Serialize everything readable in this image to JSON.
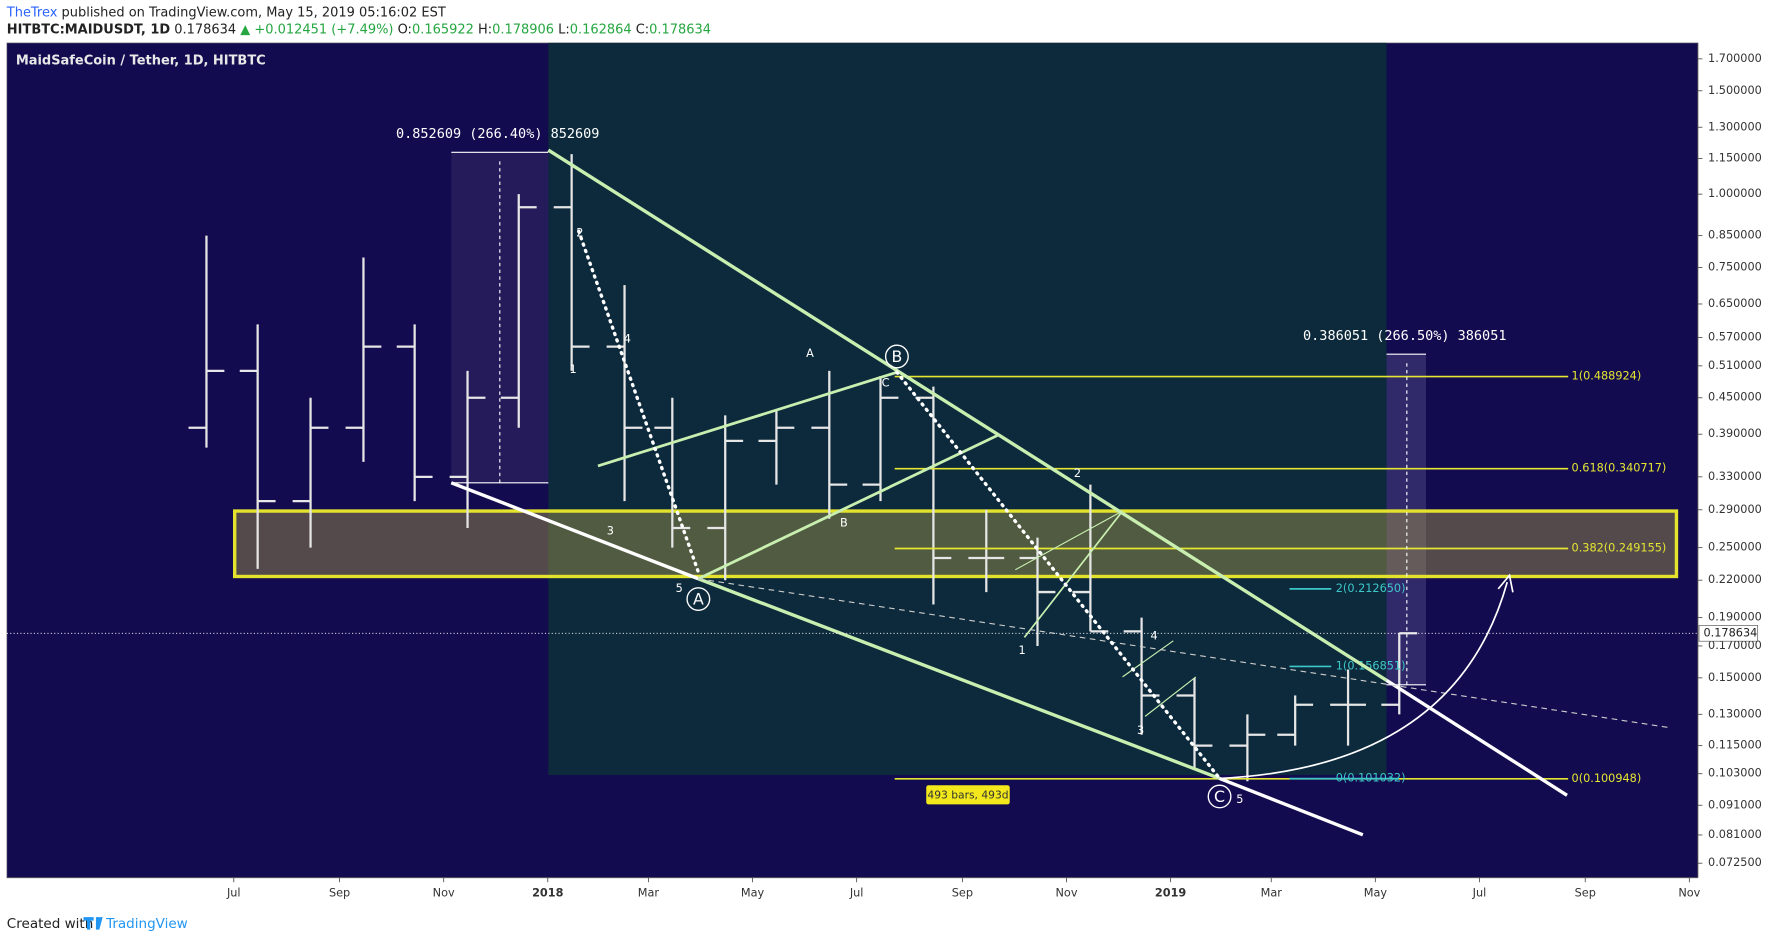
{
  "header": {
    "author": "TheTrex",
    "published": "published on TradingView.com, May 15, 2019 05:16:02 EST",
    "symbol": "HITBTC:MAIDUSDT, 1D",
    "last": "0.178634",
    "change": "▲ +0.012451 (+7.49%)",
    "o_label": "O:",
    "o": "0.165922",
    "h_label": "H:",
    "h": "0.178906",
    "l_label": "L:",
    "l": "0.162864",
    "c_label": "C:",
    "c": "0.178634"
  },
  "chart_data": {
    "type": "ohlc",
    "title": "MaidSafeCoin / Tether, 1D, HITBTC",
    "log_scale": true,
    "color": "#e6e6e6",
    "x": [
      "2017-06",
      "2017-07",
      "2017-08",
      "2017-09",
      "2017-10",
      "2017-11",
      "2017-12",
      "2018-01",
      "2018-02",
      "2018-03",
      "2018-04",
      "2018-05",
      "2018-06",
      "2018-07",
      "2018-08",
      "2018-09",
      "2018-10",
      "2018-11",
      "2018-12",
      "2019-01",
      "2019-02",
      "2019-03",
      "2019-04",
      "2019-05"
    ],
    "open": [
      0.4,
      0.5,
      0.3,
      0.4,
      0.55,
      0.33,
      0.45,
      0.95,
      0.55,
      0.4,
      0.27,
      0.38,
      0.4,
      0.32,
      0.45,
      0.24,
      0.24,
      0.21,
      0.18,
      0.14,
      0.115,
      0.12,
      0.135,
      0.135
    ],
    "high": [
      0.85,
      0.6,
      0.45,
      0.78,
      0.6,
      0.5,
      1.0,
      1.17,
      0.7,
      0.45,
      0.42,
      0.43,
      0.5,
      0.49,
      0.47,
      0.29,
      0.26,
      0.32,
      0.19,
      0.15,
      0.13,
      0.14,
      0.155,
      0.178906
    ],
    "low": [
      0.37,
      0.23,
      0.25,
      0.35,
      0.3,
      0.27,
      0.4,
      0.5,
      0.3,
      0.25,
      0.22,
      0.32,
      0.28,
      0.3,
      0.2,
      0.21,
      0.17,
      0.18,
      0.12,
      0.105,
      0.1,
      0.115,
      0.115,
      0.13
    ],
    "close": [
      0.5,
      0.3,
      0.4,
      0.55,
      0.33,
      0.45,
      0.95,
      0.55,
      0.4,
      0.27,
      0.38,
      0.4,
      0.32,
      0.45,
      0.24,
      0.24,
      0.21,
      0.18,
      0.14,
      0.115,
      0.12,
      0.135,
      0.135,
      0.178634
    ],
    "xlim": [
      "2017-02-18",
      "2019-11-06"
    ],
    "xticks": [
      {
        "value": "2017-07",
        "label": "Jul"
      },
      {
        "value": "2017-09",
        "label": "Sep"
      },
      {
        "value": "2017-11",
        "label": "Nov"
      },
      {
        "value": "2018-01",
        "label": "2018"
      },
      {
        "value": "2018-03",
        "label": "Mar"
      },
      {
        "value": "2018-05",
        "label": "May"
      },
      {
        "value": "2018-07",
        "label": "Jul"
      },
      {
        "value": "2018-09",
        "label": "Sep"
      },
      {
        "value": "2018-11",
        "label": "Nov"
      },
      {
        "value": "2019-01",
        "label": "2019"
      },
      {
        "value": "2019-03",
        "label": "Mar"
      },
      {
        "value": "2019-05",
        "label": "May"
      },
      {
        "value": "2019-07",
        "label": "Jul"
      },
      {
        "value": "2019-09",
        "label": "Sep"
      },
      {
        "value": "2019-11",
        "label": "Nov"
      }
    ],
    "ylim": [
      0.0685,
      1.81
    ],
    "yticks": [
      {
        "value": 1.7,
        "label": "1.700000"
      },
      {
        "value": 1.5,
        "label": "1.500000"
      },
      {
        "value": 1.3,
        "label": "1.300000"
      },
      {
        "value": 1.15,
        "label": "1.150000"
      },
      {
        "value": 1.0,
        "label": "1.000000"
      },
      {
        "value": 0.85,
        "label": "0.850000"
      },
      {
        "value": 0.75,
        "label": "0.750000"
      },
      {
        "value": 0.65,
        "label": "0.650000"
      },
      {
        "value": 0.57,
        "label": "0.570000"
      },
      {
        "value": 0.51,
        "label": "0.510000"
      },
      {
        "value": 0.45,
        "label": "0.450000"
      },
      {
        "value": 0.39,
        "label": "0.390000"
      },
      {
        "value": 0.33,
        "label": "0.330000"
      },
      {
        "value": 0.29,
        "label": "0.290000"
      },
      {
        "value": 0.25,
        "label": "0.250000"
      },
      {
        "value": 0.22,
        "label": "0.220000"
      },
      {
        "value": 0.19,
        "label": "0.190000"
      },
      {
        "value": 0.17,
        "label": "0.170000"
      },
      {
        "value": 0.15,
        "label": "0.150000"
      },
      {
        "value": 0.13,
        "label": "0.130000"
      },
      {
        "value": 0.115,
        "label": "0.115000"
      },
      {
        "value": 0.103,
        "label": "0.103000"
      },
      {
        "value": 0.091,
        "label": "0.091000"
      },
      {
        "value": 0.081,
        "label": "0.081000"
      },
      {
        "value": 0.0725,
        "label": "0.072500"
      }
    ],
    "last_price": {
      "value": 0.178634,
      "label": "0.178634"
    },
    "fib_levels": [
      {
        "value": 0.488924,
        "label": "1(0.488924)"
      },
      {
        "value": 0.340717,
        "label": "0.618(0.340717)"
      },
      {
        "value": 0.249155,
        "label": "0.382(0.249155)"
      },
      {
        "value": 0.100948,
        "label": "0(0.100948)"
      }
    ],
    "extension_levels": [
      {
        "value": 0.21265,
        "label": "2(0.212650)"
      },
      {
        "value": 0.156851,
        "label": "1(0.156851)"
      },
      {
        "value": 0.101032,
        "label": "0(0.101032)"
      }
    ],
    "measure_1": "0.852609 (266.40%) 852609",
    "measure_2": "0.386051 (266.50%) 386051",
    "date_range": "493 bars, 493d",
    "wave_labels": [
      "A",
      "B",
      "C",
      "1",
      "2",
      "3",
      "4",
      "5",
      "A",
      "B",
      "C",
      "1",
      "2",
      "3",
      "4",
      "5"
    ]
  },
  "footer": {
    "created": "Created with",
    "brand": "TradingView"
  }
}
